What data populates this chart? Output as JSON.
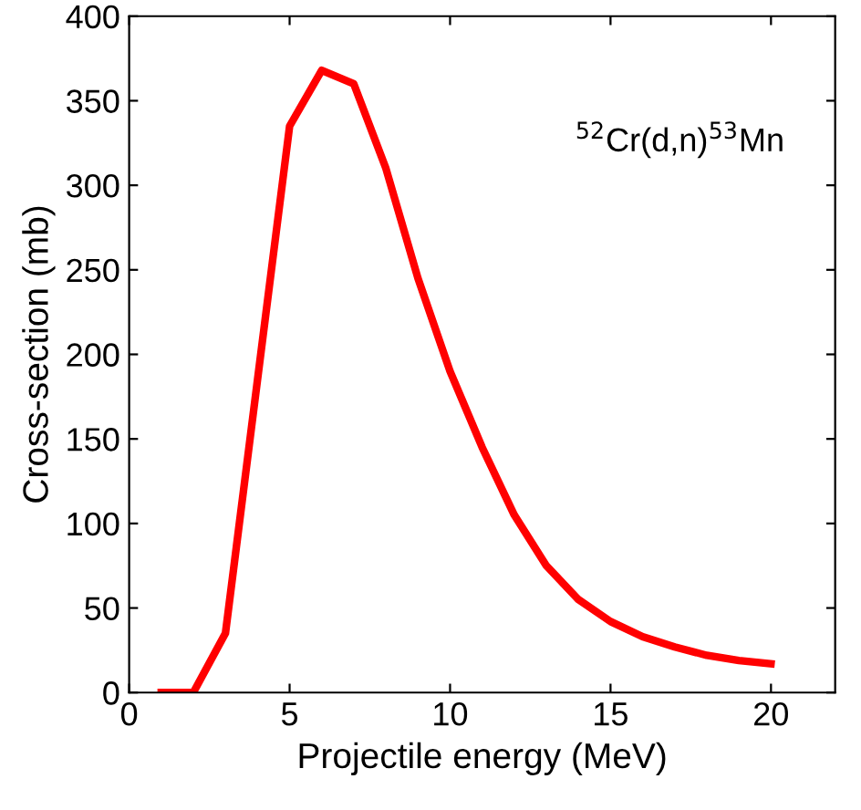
{
  "chart_data": {
    "type": "line",
    "xlabel": "Projectile energy (MeV)",
    "ylabel": "Cross-section (mb)",
    "x": [
      1,
      2,
      3,
      4,
      5,
      6,
      7,
      8,
      9,
      10,
      11,
      12,
      13,
      14,
      15,
      16,
      17,
      18,
      19,
      20
    ],
    "series": [
      {
        "color": "#ff0000",
        "values": [
          0,
          0,
          35,
          185,
          335,
          368,
          360,
          310,
          245,
          190,
          145,
          105,
          75,
          55,
          42,
          33,
          27,
          22,
          19,
          17
        ]
      }
    ],
    "xlim": [
      0,
      22
    ],
    "ylim": [
      0,
      400
    ],
    "xticks": [
      0,
      5,
      10,
      15,
      20
    ],
    "yticks": [
      0,
      50,
      100,
      150,
      200,
      250,
      300,
      350,
      400
    ],
    "annotations": [
      "$^{52}$Cr(d,n)$^{53}$Mn"
    ],
    "line_style": "solid",
    "grid": false
  }
}
